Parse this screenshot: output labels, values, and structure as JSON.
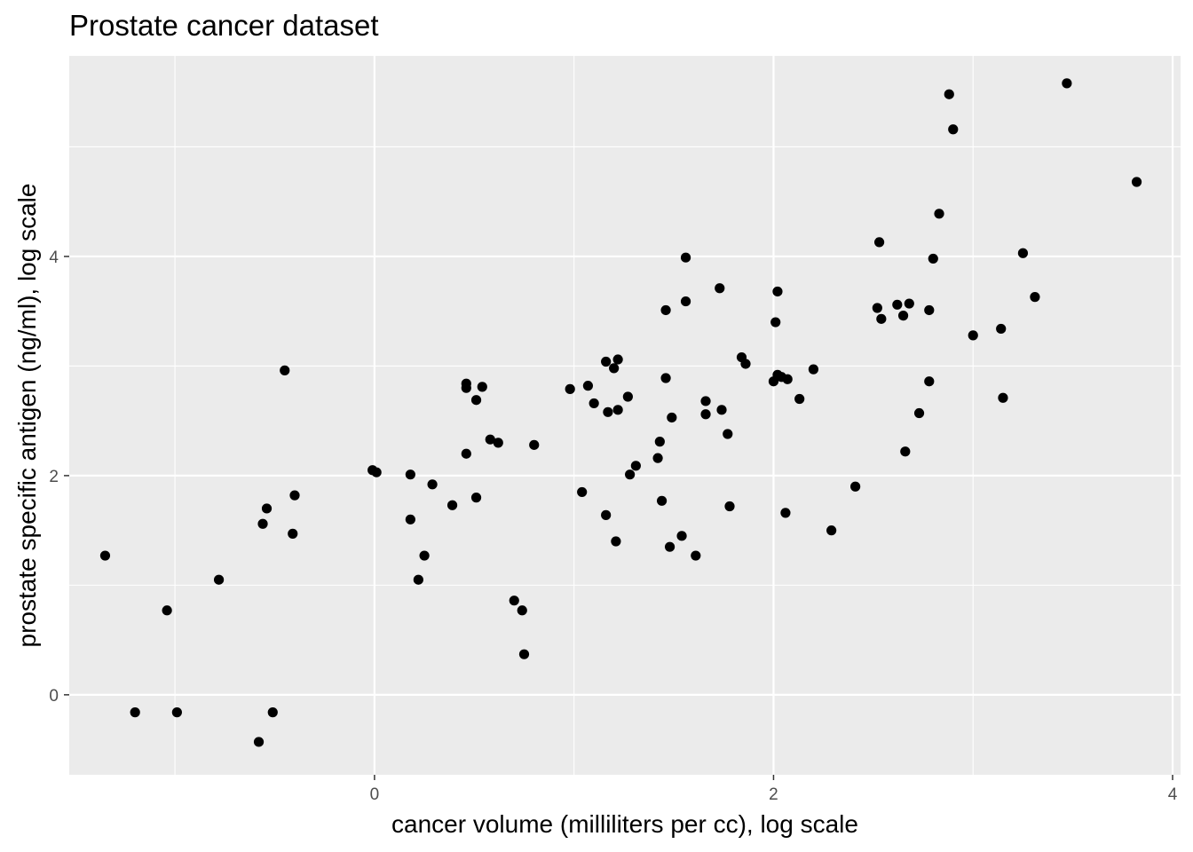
{
  "chart_data": {
    "type": "scatter",
    "title": "Prostate cancer dataset",
    "xlabel": "cancer volume (milliliters per cc), log scale",
    "ylabel": "prostate specific antigen (ng/ml), log scale",
    "xlim": [
      -1.53,
      4.04
    ],
    "ylim": [
      -0.73,
      5.83
    ],
    "x_ticks": [
      0,
      2,
      4
    ],
    "y_ticks": [
      0,
      2,
      4
    ],
    "x_tick_labels": [
      "0",
      "2",
      "4"
    ],
    "y_tick_labels": [
      "0",
      "2",
      "4"
    ],
    "grid": true,
    "legend": "none",
    "colors": {
      "panel": "#ebebeb",
      "grid": "#ffffff",
      "point": "#000000"
    },
    "points": [
      [
        -1.35,
        1.27
      ],
      [
        -1.2,
        -0.16
      ],
      [
        -1.04,
        0.77
      ],
      [
        -0.99,
        -0.16
      ],
      [
        -0.78,
        1.05
      ],
      [
        -0.58,
        -0.43
      ],
      [
        -0.56,
        1.56
      ],
      [
        -0.54,
        1.7
      ],
      [
        -0.51,
        -0.16
      ],
      [
        -0.45,
        2.96
      ],
      [
        -0.41,
        1.47
      ],
      [
        -0.4,
        1.82
      ],
      [
        -0.01,
        2.05
      ],
      [
        0.01,
        2.03
      ],
      [
        0.18,
        2.01
      ],
      [
        0.18,
        1.6
      ],
      [
        0.22,
        1.05
      ],
      [
        0.25,
        1.27
      ],
      [
        0.29,
        1.92
      ],
      [
        0.39,
        1.73
      ],
      [
        0.46,
        2.84
      ],
      [
        0.46,
        2.8
      ],
      [
        0.46,
        2.2
      ],
      [
        0.51,
        1.8
      ],
      [
        0.51,
        2.69
      ],
      [
        0.54,
        2.81
      ],
      [
        0.58,
        2.33
      ],
      [
        0.62,
        2.3
      ],
      [
        0.7,
        0.86
      ],
      [
        0.74,
        0.77
      ],
      [
        0.75,
        0.37
      ],
      [
        0.8,
        2.28
      ],
      [
        0.98,
        2.79
      ],
      [
        1.04,
        1.85
      ],
      [
        1.07,
        2.82
      ],
      [
        1.1,
        2.66
      ],
      [
        1.16,
        1.64
      ],
      [
        1.16,
        3.04
      ],
      [
        1.17,
        2.58
      ],
      [
        1.2,
        2.98
      ],
      [
        1.21,
        1.4
      ],
      [
        1.22,
        3.06
      ],
      [
        1.22,
        2.6
      ],
      [
        1.27,
        2.72
      ],
      [
        1.28,
        2.01
      ],
      [
        1.31,
        2.09
      ],
      [
        1.42,
        2.16
      ],
      [
        1.43,
        2.31
      ],
      [
        1.44,
        1.77
      ],
      [
        1.46,
        2.89
      ],
      [
        1.46,
        3.51
      ],
      [
        1.48,
        1.35
      ],
      [
        1.49,
        2.53
      ],
      [
        1.54,
        1.45
      ],
      [
        1.56,
        3.99
      ],
      [
        1.56,
        3.59
      ],
      [
        1.61,
        1.27
      ],
      [
        1.66,
        2.68
      ],
      [
        1.66,
        2.56
      ],
      [
        1.73,
        3.71
      ],
      [
        1.74,
        2.6
      ],
      [
        1.77,
        2.38
      ],
      [
        1.78,
        1.72
      ],
      [
        1.84,
        3.08
      ],
      [
        1.86,
        3.02
      ],
      [
        2.0,
        2.86
      ],
      [
        2.01,
        3.4
      ],
      [
        2.02,
        3.68
      ],
      [
        2.02,
        2.92
      ],
      [
        2.04,
        2.9
      ],
      [
        2.06,
        1.66
      ],
      [
        2.07,
        2.88
      ],
      [
        2.13,
        2.7
      ],
      [
        2.2,
        2.97
      ],
      [
        2.29,
        1.5
      ],
      [
        2.41,
        1.9
      ],
      [
        2.52,
        3.53
      ],
      [
        2.53,
        4.13
      ],
      [
        2.54,
        3.43
      ],
      [
        2.62,
        3.56
      ],
      [
        2.65,
        3.46
      ],
      [
        2.66,
        2.22
      ],
      [
        2.68,
        3.57
      ],
      [
        2.73,
        2.57
      ],
      [
        2.78,
        3.51
      ],
      [
        2.78,
        2.86
      ],
      [
        2.8,
        3.98
      ],
      [
        2.83,
        4.39
      ],
      [
        2.88,
        5.48
      ],
      [
        2.9,
        5.16
      ],
      [
        3.0,
        3.28
      ],
      [
        3.14,
        3.34
      ],
      [
        3.15,
        2.71
      ],
      [
        3.25,
        4.03
      ],
      [
        3.31,
        3.63
      ],
      [
        3.47,
        5.58
      ],
      [
        3.82,
        4.68
      ]
    ]
  }
}
